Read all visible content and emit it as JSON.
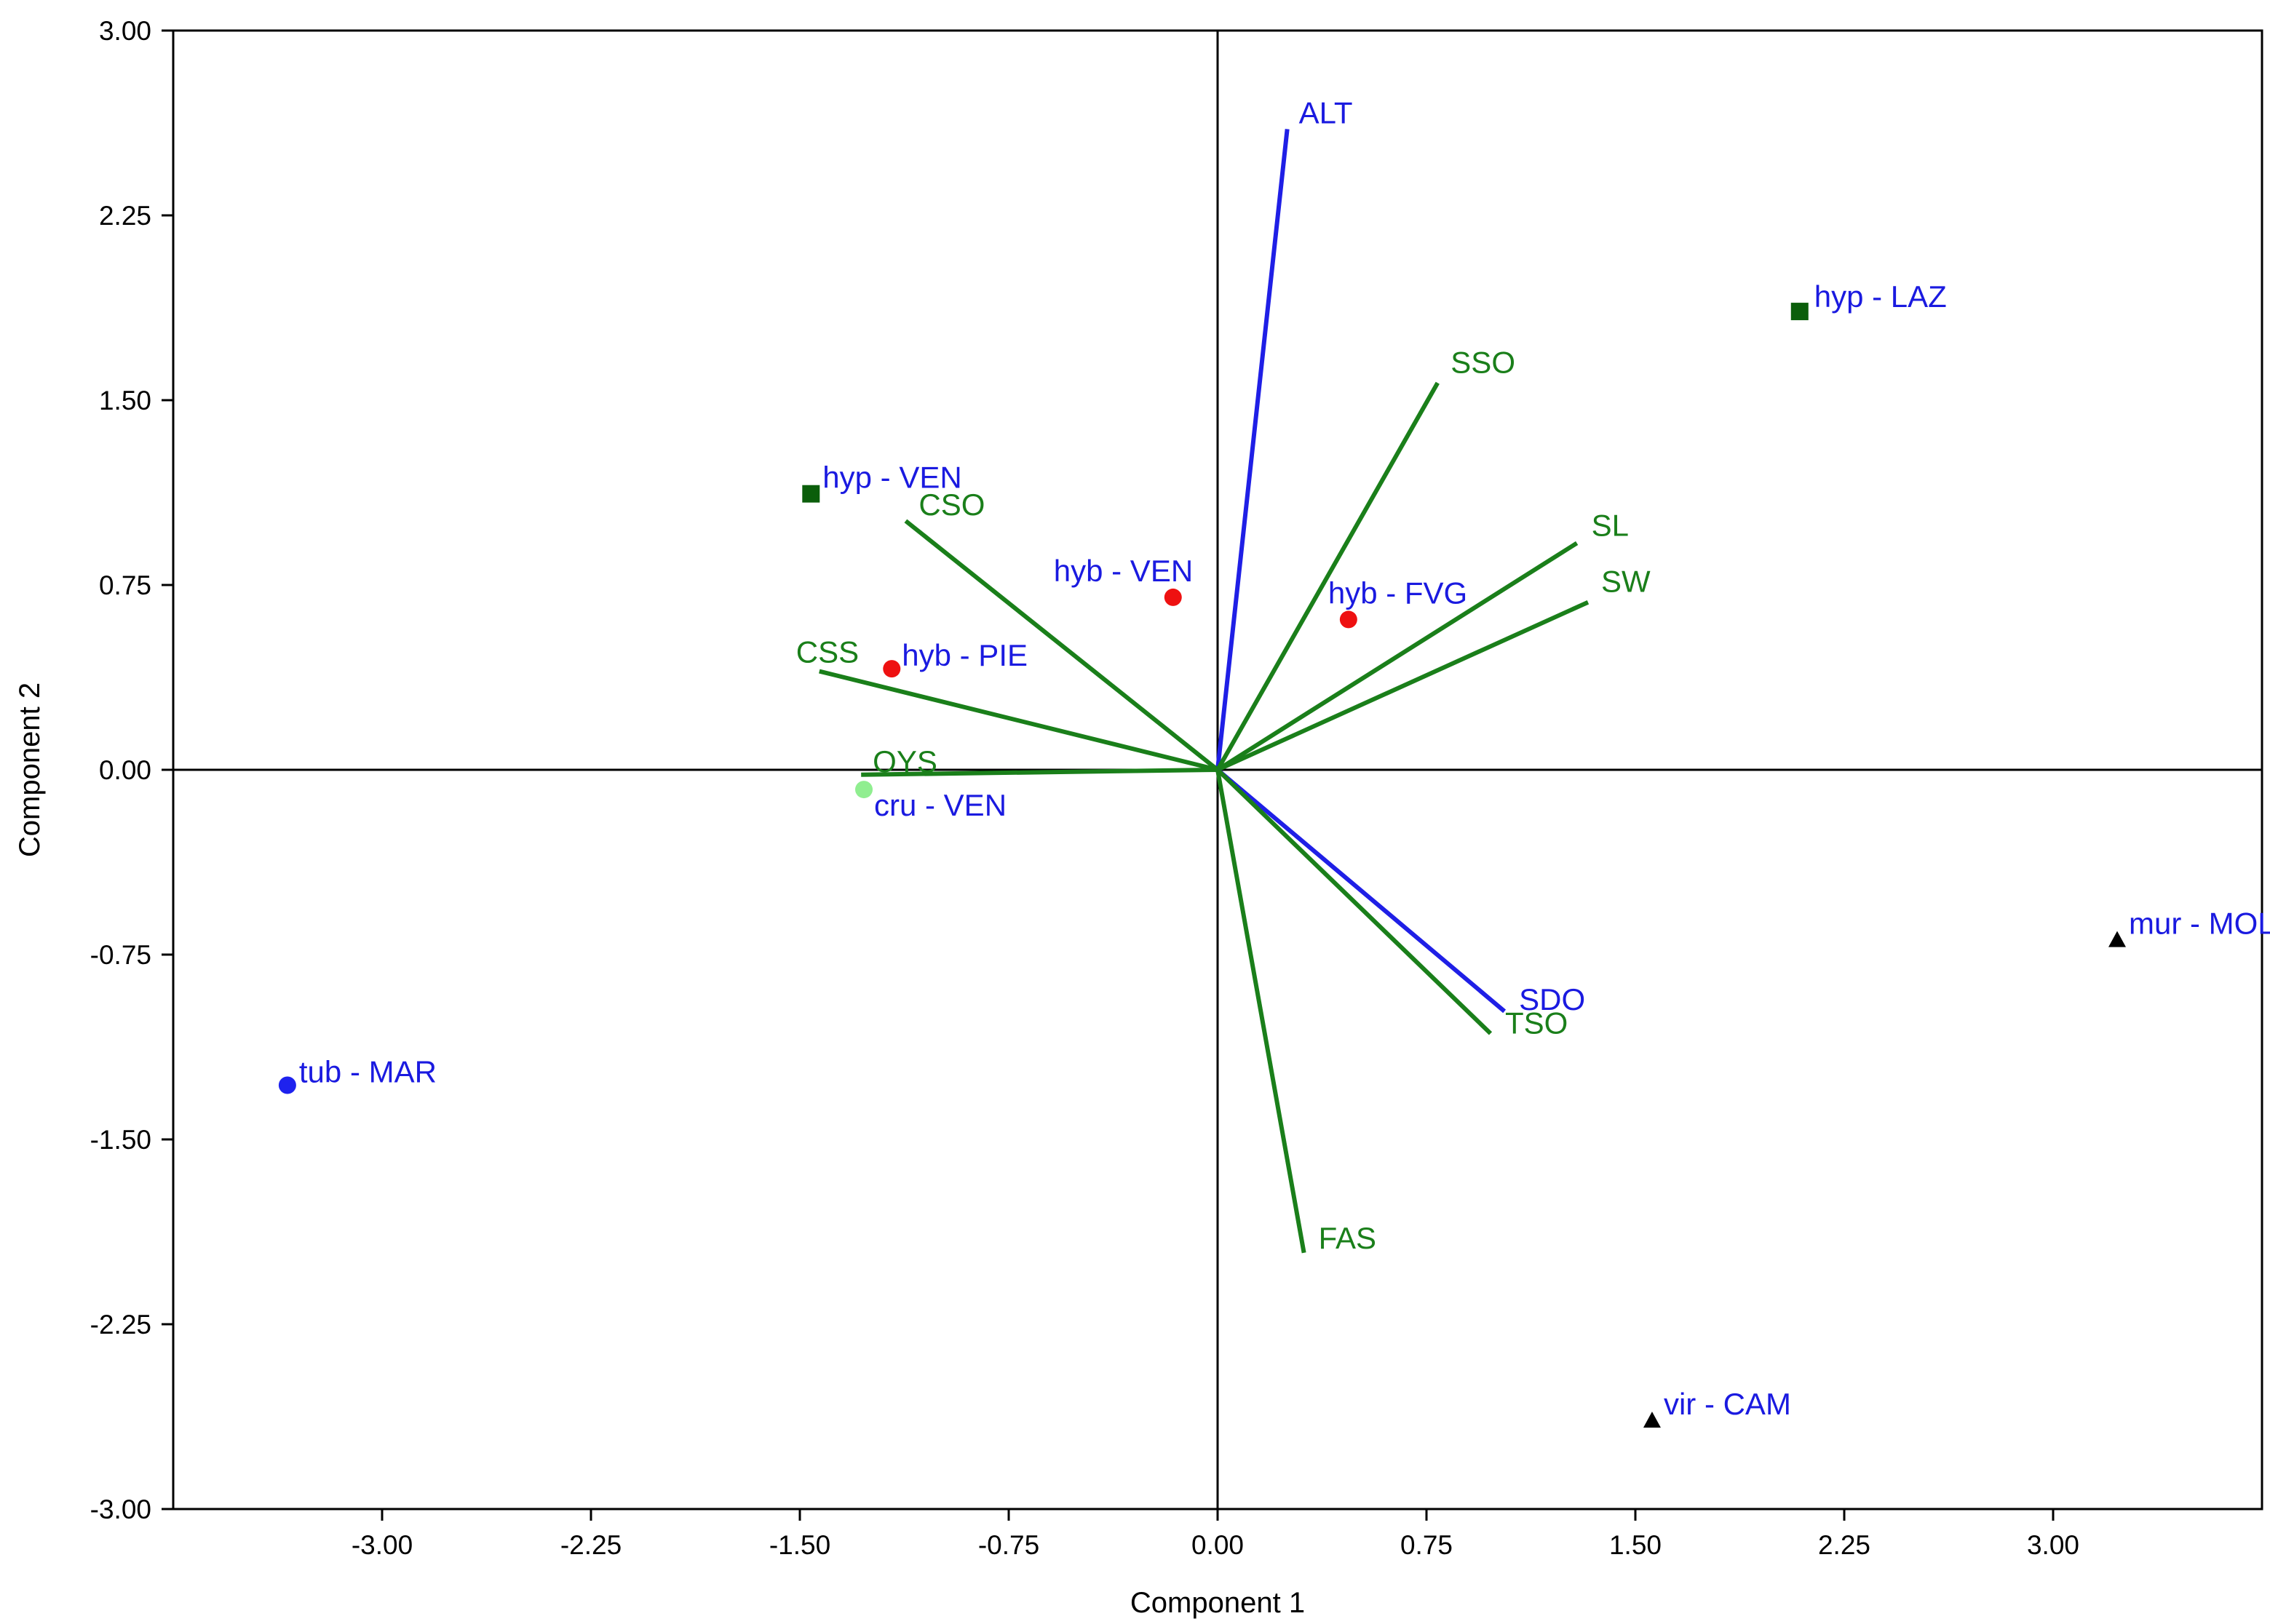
{
  "chart_data": {
    "type": "scatter",
    "subtype": "pca-biplot",
    "title": "",
    "xlabel": "Component 1",
    "ylabel": "Component 2",
    "xlim": [
      -3.75,
      3.75
    ],
    "ylim": [
      -3.0,
      3.0
    ],
    "xticks": [
      "-3.00",
      "-2.25",
      "-1.50",
      "-0.75",
      "0.00",
      "0.75",
      "1.50",
      "2.25",
      "3.00"
    ],
    "yticks": [
      "3.00",
      "2.25",
      "1.50",
      "0.75",
      "0.00",
      "-0.75",
      "-1.50",
      "-2.25",
      "-3.00"
    ],
    "grid": false,
    "colors": {
      "variable_green": "#1a7f1a",
      "variable_blue": "#1f1fe6",
      "label_blue": "#1a1ae0",
      "label_green": "#1a7f1a",
      "hyp": "#0b5e0b",
      "hyb": "#ee1111",
      "cru": "#90ee90",
      "tub": "#1e22ee",
      "mur_vir": "#000000"
    },
    "vectors": [
      {
        "name": "ALT",
        "x": 0.25,
        "y": 2.6,
        "color": "blue"
      },
      {
        "name": "SSO",
        "x": 0.79,
        "y": 1.57,
        "color": "green"
      },
      {
        "name": "SL",
        "x": 1.29,
        "y": 0.92,
        "color": "green"
      },
      {
        "name": "SW",
        "x": 1.33,
        "y": 0.68,
        "color": "green"
      },
      {
        "name": "CSO",
        "x": -1.12,
        "y": 1.01,
        "color": "green"
      },
      {
        "name": "CSS",
        "x": -1.43,
        "y": 0.4,
        "color": "green"
      },
      {
        "name": "OYS",
        "x": -1.28,
        "y": -0.02,
        "color": "green"
      },
      {
        "name": "SDO",
        "x": 1.03,
        "y": -0.98,
        "color": "blue"
      },
      {
        "name": "TSO",
        "x": 0.98,
        "y": -1.07,
        "color": "green"
      },
      {
        "name": "FAS",
        "x": 0.31,
        "y": -1.96,
        "color": "green"
      }
    ],
    "points": [
      {
        "label": "hyp - LAZ",
        "group": "hyp",
        "marker": "square",
        "x": 2.09,
        "y": 1.86
      },
      {
        "label": "hyp - VEN",
        "group": "hyp",
        "marker": "square",
        "x": -1.46,
        "y": 1.12
      },
      {
        "label": "hyb - VEN",
        "group": "hyb",
        "marker": "circle",
        "x": -0.16,
        "y": 0.7
      },
      {
        "label": "hyb - FVG",
        "group": "hyb",
        "marker": "circle",
        "x": 0.47,
        "y": 0.61
      },
      {
        "label": "hyb - PIE",
        "group": "hyb",
        "marker": "circle",
        "x": -1.17,
        "y": 0.41
      },
      {
        "label": "cru - VEN",
        "group": "cru",
        "marker": "circle",
        "x": -1.27,
        "y": -0.08
      },
      {
        "label": "tub - MAR",
        "group": "tub",
        "marker": "circle",
        "x": -3.34,
        "y": -1.28
      },
      {
        "label": "mur - MOL",
        "group": "mur",
        "marker": "triangle",
        "x": 3.23,
        "y": -0.69
      },
      {
        "label": "vir - CAM",
        "group": "vir",
        "marker": "triangle",
        "x": 1.56,
        "y": -2.64
      }
    ]
  }
}
